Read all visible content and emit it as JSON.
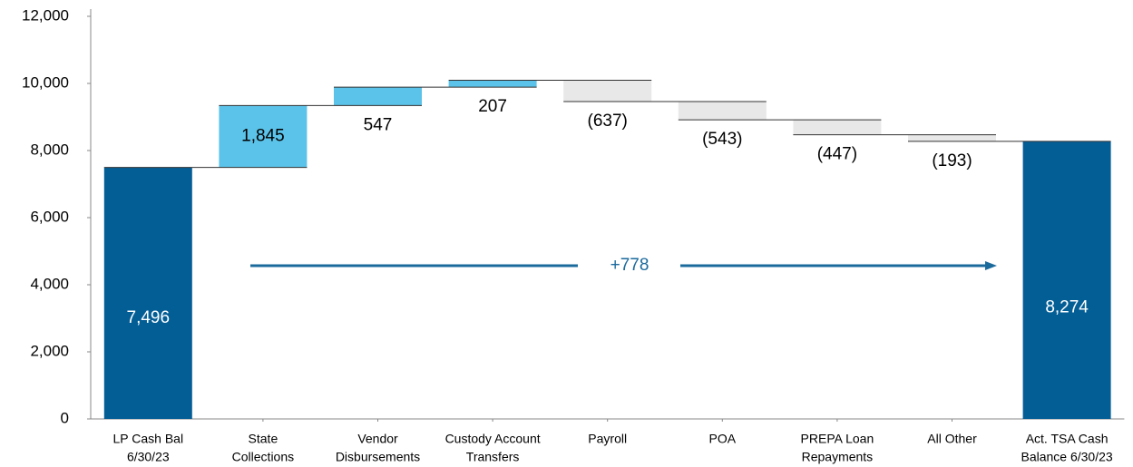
{
  "chart_data": {
    "type": "waterfall",
    "categories": [
      [
        "LP Cash Bal",
        "6/30/23"
      ],
      [
        "State",
        "Collections"
      ],
      [
        "Vendor",
        "Disbursements"
      ],
      [
        "Custody Account",
        "Transfers"
      ],
      [
        "Payroll"
      ],
      [
        "POA"
      ],
      [
        "PREPA Loan",
        "Repayments"
      ],
      [
        "All Other"
      ],
      [
        "Act. TSA Cash",
        "Balance 6/30/23"
      ]
    ],
    "values": [
      7496,
      1845,
      547,
      207,
      -637,
      -543,
      -447,
      -193,
      8274
    ],
    "value_labels": [
      "7,496",
      "1,845",
      "547",
      "207",
      "(637)",
      "(543)",
      "(447)",
      "(193)",
      "8,274"
    ],
    "measure": [
      "absolute",
      "relative",
      "relative",
      "relative",
      "relative",
      "relative",
      "relative",
      "relative",
      "total"
    ],
    "colors": {
      "total": "#045e96",
      "increase": "#5bc3e9",
      "decrease": "#e8e8e8"
    },
    "annotation": {
      "text": "+778",
      "color": "#1b6a9c"
    },
    "ylim": [
      0,
      12000
    ],
    "yticks": [
      0,
      {
        "value": 2000,
        "label": "2,000"
      },
      {
        "value": 4000,
        "label": "4,000"
      },
      {
        "value": 6000,
        "label": "6,000"
      },
      {
        "value": 8000,
        "label": "8,000"
      },
      {
        "value": 10000,
        "label": "10,000"
      },
      {
        "value": 12000,
        "label": "12,000"
      }
    ]
  }
}
